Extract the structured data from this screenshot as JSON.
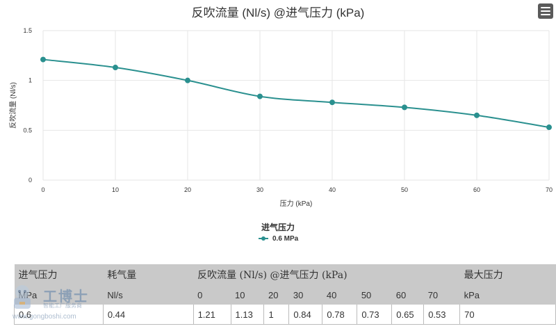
{
  "chart_data": {
    "type": "line",
    "title": "反吹流量 (Nl/s) @进气压力 (kPa)",
    "xlabel": "压力 (kPa)",
    "ylabel": "反吹流量 (Nl/s)",
    "x": [
      0,
      10,
      20,
      30,
      40,
      50,
      60,
      70
    ],
    "xticks": [
      "0",
      "10",
      "20",
      "30",
      "40",
      "50",
      "60",
      "70"
    ],
    "yticks": [
      "0",
      "0.5",
      "1",
      "1.5"
    ],
    "xlim": [
      0,
      70
    ],
    "ylim": [
      0,
      1.5
    ],
    "grid": true,
    "legend_title": "进气压力",
    "legend_position": "bottom-center",
    "series": [
      {
        "name": "0.6 MPa",
        "color": "#2a908f",
        "values": [
          1.21,
          1.13,
          1.0,
          0.84,
          0.78,
          0.73,
          0.65,
          0.53
        ]
      }
    ]
  },
  "menu_icon": "hamburger-menu-icon",
  "table": {
    "header_row1": {
      "inlet_pressure": "进气压力",
      "air_consumption": "耗气量",
      "flow_title": "反吹流量 (Nl/s) @进气压力 (kPa)",
      "max_pressure": "最大压力"
    },
    "header_row2": [
      "MPa",
      "Nl/s",
      "0",
      "10",
      "20",
      "30",
      "40",
      "50",
      "60",
      "70",
      "kPa"
    ],
    "rows": [
      [
        "0.6",
        "0.44",
        "1.21",
        "1.13",
        "1",
        "0.84",
        "0.78",
        "0.73",
        "0.65",
        "0.53",
        "70"
      ]
    ]
  },
  "watermark": {
    "brand": "工博士",
    "subtitle": "智能工厂服务商",
    "url": "www.gongboshi.com"
  }
}
